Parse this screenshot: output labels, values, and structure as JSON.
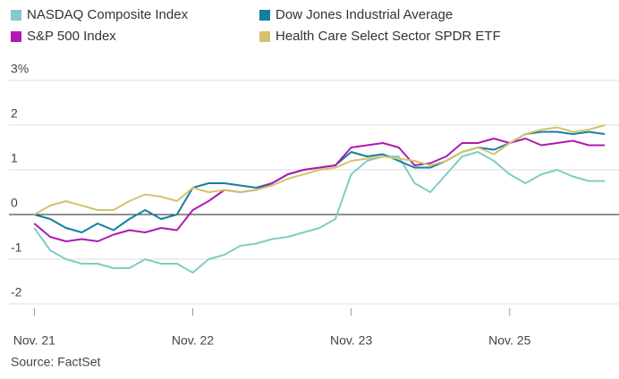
{
  "chart_data": {
    "type": "line",
    "source": "Source: FactSet",
    "x": [
      0,
      0.1,
      0.2,
      0.3,
      0.4,
      0.5,
      0.6,
      0.7,
      0.8,
      0.9,
      1.0,
      1.1,
      1.2,
      1.3,
      1.4,
      1.5,
      1.6,
      1.7,
      1.8,
      1.9,
      2.0,
      2.1,
      2.2,
      2.3,
      2.4,
      2.5,
      2.6,
      2.7,
      2.8,
      2.9,
      3.0,
      3.1,
      3.2,
      3.3,
      3.4,
      3.5,
      3.6
    ],
    "xlim": [
      -0.16,
      3.69
    ],
    "xticks": [
      {
        "value": 0,
        "label": "Nov. 21"
      },
      {
        "value": 1,
        "label": "Nov. 22"
      },
      {
        "value": 2,
        "label": "Nov. 23"
      },
      {
        "value": 3,
        "label": "Nov. 25"
      }
    ],
    "ylim": [
      -2,
      3
    ],
    "yticks": [
      -2,
      -1,
      0,
      1,
      2,
      {
        "value": 3,
        "label": "3%"
      }
    ],
    "grid": true,
    "series": [
      {
        "name": "NASDAQ Composite Index",
        "color": "#7fcdc5",
        "values": [
          -0.3,
          -0.8,
          -1.0,
          -1.1,
          -1.1,
          -1.2,
          -1.2,
          -1.0,
          -1.1,
          -1.1,
          -1.3,
          -1.0,
          -0.9,
          -0.7,
          -0.65,
          -0.55,
          -0.5,
          -0.4,
          -0.3,
          -0.1,
          0.9,
          1.2,
          1.3,
          1.3,
          0.7,
          0.5,
          0.9,
          1.3,
          1.4,
          1.2,
          0.9,
          0.7,
          0.9,
          1.0,
          0.85,
          0.75,
          0.75
        ]
      },
      {
        "name": "Dow Jones Industrial Average",
        "color": "#137fa0",
        "values": [
          0,
          -0.1,
          -0.3,
          -0.4,
          -0.2,
          -0.35,
          -0.1,
          0.1,
          -0.1,
          0,
          0.6,
          0.7,
          0.7,
          0.65,
          0.6,
          0.7,
          0.9,
          1.0,
          1.05,
          1.1,
          1.4,
          1.3,
          1.35,
          1.2,
          1.05,
          1.05,
          1.2,
          1.4,
          1.5,
          1.45,
          1.6,
          1.8,
          1.85,
          1.85,
          1.8,
          1.85,
          1.8
        ]
      },
      {
        "name": "S&P 500 Index",
        "color": "#b01ab0",
        "values": [
          -0.2,
          -0.5,
          -0.6,
          -0.55,
          -0.6,
          -0.45,
          -0.35,
          -0.4,
          -0.3,
          -0.35,
          0.1,
          0.3,
          0.55,
          0.5,
          0.55,
          0.7,
          0.9,
          1.0,
          1.05,
          1.1,
          1.5,
          1.55,
          1.6,
          1.5,
          1.1,
          1.15,
          1.3,
          1.6,
          1.6,
          1.7,
          1.6,
          1.7,
          1.55,
          1.6,
          1.65,
          1.55,
          1.55
        ]
      },
      {
        "name": "Health Care Select Sector SPDR ETF",
        "color": "#d3c46c",
        "values": [
          0,
          0.2,
          0.3,
          0.2,
          0.1,
          0.1,
          0.3,
          0.45,
          0.4,
          0.3,
          0.6,
          0.5,
          0.55,
          0.5,
          0.55,
          0.65,
          0.8,
          0.9,
          1.0,
          1.05,
          1.2,
          1.25,
          1.3,
          1.25,
          1.2,
          1.1,
          1.2,
          1.4,
          1.5,
          1.35,
          1.6,
          1.8,
          1.9,
          1.95,
          1.85,
          1.9,
          2.0
        ]
      }
    ]
  }
}
